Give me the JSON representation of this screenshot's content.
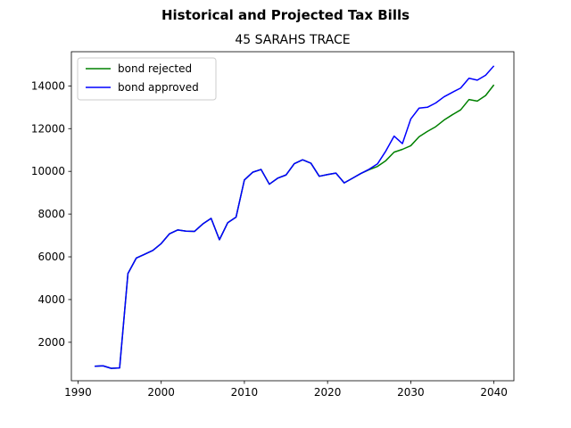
{
  "chart_data": {
    "type": "line",
    "suptitle": "Historical and Projected Tax Bills",
    "title": "45 SARAHS TRACE",
    "xlabel": "",
    "ylabel": "",
    "xlim": [
      1989.2,
      2042.4
    ],
    "ylim": [
      200,
      15600
    ],
    "xticks": [
      1990,
      2000,
      2010,
      2020,
      2030,
      2040
    ],
    "yticks": [
      2000,
      4000,
      6000,
      8000,
      10000,
      12000,
      14000
    ],
    "grid": false,
    "legend": "upper left",
    "series": [
      {
        "name": "bond rejected",
        "color": "#008000",
        "x": [
          1992,
          1993,
          1994,
          1995,
          1996,
          1997,
          1998,
          1999,
          2000,
          2001,
          2002,
          2003,
          2004,
          2005,
          2006,
          2007,
          2008,
          2009,
          2010,
          2011,
          2012,
          2013,
          2014,
          2015,
          2016,
          2017,
          2018,
          2019,
          2020,
          2021,
          2022,
          2023,
          2024,
          2025,
          2026,
          2027,
          2028,
          2029,
          2030,
          2031,
          2032,
          2033,
          2034,
          2035,
          2036,
          2037,
          2038,
          2039,
          2040
        ],
        "values": [
          880,
          900,
          780,
          800,
          5220,
          5940,
          6120,
          6300,
          6620,
          7080,
          7260,
          7200,
          7190,
          7540,
          7800,
          6800,
          7600,
          7860,
          9600,
          9960,
          10090,
          9400,
          9680,
          9830,
          10360,
          10540,
          10380,
          9770,
          9850,
          9920,
          9460,
          9680,
          9900,
          10080,
          10230,
          10500,
          10900,
          11030,
          11200,
          11620,
          11870,
          12090,
          12400,
          12650,
          12880,
          13360,
          13290,
          13550,
          14050
        ]
      },
      {
        "name": "bond approved",
        "color": "#0000ff",
        "x": [
          1992,
          1993,
          1994,
          1995,
          1996,
          1997,
          1998,
          1999,
          2000,
          2001,
          2002,
          2003,
          2004,
          2005,
          2006,
          2007,
          2008,
          2009,
          2010,
          2011,
          2012,
          2013,
          2014,
          2015,
          2016,
          2017,
          2018,
          2019,
          2020,
          2021,
          2022,
          2023,
          2024,
          2025,
          2026,
          2027,
          2028,
          2029,
          2030,
          2031,
          2032,
          2033,
          2034,
          2035,
          2036,
          2037,
          2038,
          2039,
          2040
        ],
        "values": [
          880,
          900,
          780,
          800,
          5220,
          5940,
          6120,
          6300,
          6620,
          7080,
          7260,
          7200,
          7190,
          7540,
          7800,
          6800,
          7600,
          7860,
          9600,
          9960,
          10090,
          9400,
          9680,
          9830,
          10360,
          10540,
          10380,
          9770,
          9850,
          9920,
          9460,
          9680,
          9900,
          10100,
          10350,
          10950,
          11650,
          11300,
          12450,
          12960,
          13000,
          13200,
          13490,
          13700,
          13900,
          14360,
          14270,
          14500,
          14940
        ]
      }
    ]
  }
}
